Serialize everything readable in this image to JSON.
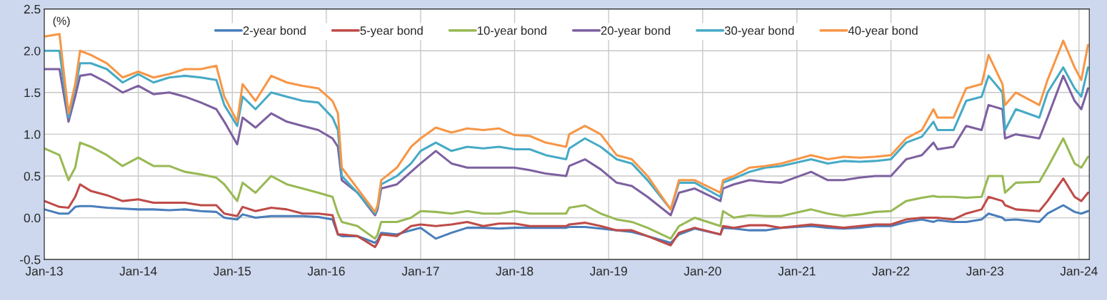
{
  "chart_data": {
    "type": "line",
    "ylabel": "(%)",
    "x": [
      "2013-01-02",
      "2013-03-01",
      "2013-04-05",
      "2013-05-01",
      "2013-05-20",
      "2013-07-01",
      "2013-09-01",
      "2013-11-01",
      "2014-01-01",
      "2014-03-01",
      "2014-05-01",
      "2014-07-01",
      "2014-09-01",
      "2014-10-31",
      "2014-12-01",
      "2015-01-20",
      "2015-02-10",
      "2015-04-01",
      "2015-06-01",
      "2015-08-01",
      "2015-10-01",
      "2015-12-01",
      "2016-01-25",
      "2016-02-15",
      "2016-03-01",
      "2016-05-01",
      "2016-07-08",
      "2016-07-18",
      "2016-08-01",
      "2016-10-01",
      "2016-11-25",
      "2017-01-01",
      "2017-03-01",
      "2017-05-01",
      "2017-07-01",
      "2017-09-01",
      "2017-11-01",
      "2018-01-01",
      "2018-03-01",
      "2018-05-01",
      "2018-07-20",
      "2018-08-01",
      "2018-10-01",
      "2018-12-01",
      "2019-02-01",
      "2019-04-01",
      "2019-06-01",
      "2019-08-30",
      "2019-10-01",
      "2019-12-01",
      "2020-03-10",
      "2020-03-20",
      "2020-05-01",
      "2020-07-01",
      "2020-09-01",
      "2020-11-01",
      "2021-02-25",
      "2021-05-01",
      "2021-07-01",
      "2021-09-01",
      "2021-11-01",
      "2022-01-01",
      "2022-03-01",
      "2022-05-01",
      "2022-06-15",
      "2022-07-01",
      "2022-09-01",
      "2022-10-20",
      "2022-12-19",
      "2023-01-15",
      "2023-03-10",
      "2023-03-20",
      "2023-05-01",
      "2023-07-31",
      "2023-09-01",
      "2023-11-01",
      "2023-12-15",
      "2024-01-10",
      "2024-02-05"
    ],
    "series": [
      {
        "name": "2-year bond",
        "color": "#4a7ebb",
        "values": [
          0.1,
          0.05,
          0.05,
          0.13,
          0.14,
          0.14,
          0.12,
          0.11,
          0.1,
          0.1,
          0.09,
          0.1,
          0.08,
          0.07,
          0.0,
          -0.02,
          0.04,
          0.0,
          0.02,
          0.02,
          0.02,
          0.01,
          -0.02,
          -0.2,
          -0.22,
          -0.22,
          -0.3,
          -0.27,
          -0.18,
          -0.2,
          -0.15,
          -0.12,
          -0.25,
          -0.18,
          -0.12,
          -0.12,
          -0.13,
          -0.12,
          -0.12,
          -0.12,
          -0.12,
          -0.11,
          -0.11,
          -0.13,
          -0.15,
          -0.17,
          -0.22,
          -0.3,
          -0.2,
          -0.13,
          -0.2,
          -0.12,
          -0.13,
          -0.15,
          -0.15,
          -0.12,
          -0.1,
          -0.12,
          -0.13,
          -0.12,
          -0.1,
          -0.1,
          -0.05,
          -0.02,
          -0.05,
          -0.03,
          -0.05,
          -0.05,
          -0.02,
          0.05,
          0.0,
          -0.03,
          -0.02,
          -0.05,
          0.05,
          0.15,
          0.07,
          0.05,
          0.08
        ]
      },
      {
        "name": "5-year bond",
        "color": "#be4b48",
        "values": [
          0.2,
          0.13,
          0.12,
          0.25,
          0.4,
          0.32,
          0.27,
          0.2,
          0.22,
          0.18,
          0.18,
          0.18,
          0.15,
          0.15,
          0.05,
          0.02,
          0.13,
          0.08,
          0.12,
          0.1,
          0.05,
          0.05,
          0.03,
          -0.2,
          -0.2,
          -0.22,
          -0.35,
          -0.3,
          -0.2,
          -0.22,
          -0.1,
          -0.08,
          -0.1,
          -0.08,
          -0.05,
          -0.1,
          -0.07,
          -0.07,
          -0.1,
          -0.1,
          -0.1,
          -0.08,
          -0.06,
          -0.1,
          -0.15,
          -0.15,
          -0.22,
          -0.33,
          -0.18,
          -0.12,
          -0.2,
          -0.1,
          -0.12,
          -0.09,
          -0.09,
          -0.12,
          -0.08,
          -0.1,
          -0.12,
          -0.1,
          -0.08,
          -0.08,
          -0.02,
          0.0,
          0.0,
          0.0,
          -0.02,
          0.05,
          0.1,
          0.25,
          0.2,
          0.15,
          0.1,
          0.08,
          0.2,
          0.47,
          0.25,
          0.2,
          0.3
        ]
      },
      {
        "name": "10-year bond",
        "color": "#98b954",
        "values": [
          0.83,
          0.75,
          0.45,
          0.6,
          0.9,
          0.85,
          0.75,
          0.62,
          0.72,
          0.62,
          0.62,
          0.55,
          0.52,
          0.48,
          0.4,
          0.2,
          0.42,
          0.3,
          0.5,
          0.4,
          0.35,
          0.3,
          0.25,
          0.05,
          -0.05,
          -0.1,
          -0.25,
          -0.2,
          -0.05,
          -0.05,
          0.0,
          0.08,
          0.07,
          0.05,
          0.08,
          0.05,
          0.05,
          0.08,
          0.05,
          0.05,
          0.05,
          0.12,
          0.15,
          0.05,
          -0.02,
          -0.05,
          -0.12,
          -0.25,
          -0.1,
          0.0,
          -0.1,
          0.08,
          0.0,
          0.03,
          0.02,
          0.02,
          0.1,
          0.05,
          0.02,
          0.04,
          0.07,
          0.08,
          0.2,
          0.24,
          0.26,
          0.25,
          0.25,
          0.24,
          0.25,
          0.5,
          0.5,
          0.3,
          0.42,
          0.43,
          0.6,
          0.95,
          0.65,
          0.6,
          0.73
        ]
      },
      {
        "name": "20-year bond",
        "color": "#7d60a0",
        "values": [
          1.78,
          1.78,
          1.15,
          1.45,
          1.7,
          1.72,
          1.62,
          1.5,
          1.58,
          1.48,
          1.5,
          1.45,
          1.38,
          1.3,
          1.15,
          0.88,
          1.2,
          1.08,
          1.25,
          1.15,
          1.1,
          1.05,
          0.95,
          0.85,
          0.45,
          0.3,
          0.03,
          0.1,
          0.35,
          0.4,
          0.55,
          0.65,
          0.8,
          0.65,
          0.6,
          0.6,
          0.6,
          0.6,
          0.57,
          0.53,
          0.5,
          0.62,
          0.7,
          0.58,
          0.42,
          0.38,
          0.25,
          0.03,
          0.3,
          0.35,
          0.2,
          0.35,
          0.4,
          0.45,
          0.43,
          0.42,
          0.55,
          0.45,
          0.45,
          0.48,
          0.5,
          0.5,
          0.7,
          0.75,
          0.9,
          0.82,
          0.85,
          1.1,
          1.05,
          1.35,
          1.3,
          0.95,
          1.0,
          0.95,
          1.2,
          1.7,
          1.4,
          1.3,
          1.55
        ]
      },
      {
        "name": "30-year bond",
        "color": "#46aac5",
        "values": [
          2.0,
          2.0,
          1.2,
          1.55,
          1.85,
          1.85,
          1.78,
          1.62,
          1.72,
          1.62,
          1.68,
          1.7,
          1.68,
          1.65,
          1.35,
          1.1,
          1.45,
          1.3,
          1.5,
          1.45,
          1.4,
          1.38,
          1.2,
          1.05,
          0.5,
          0.3,
          0.05,
          0.12,
          0.4,
          0.5,
          0.65,
          0.8,
          0.9,
          0.8,
          0.85,
          0.83,
          0.85,
          0.82,
          0.82,
          0.75,
          0.7,
          0.83,
          0.95,
          0.85,
          0.7,
          0.65,
          0.45,
          0.1,
          0.42,
          0.42,
          0.25,
          0.42,
          0.47,
          0.55,
          0.6,
          0.62,
          0.7,
          0.65,
          0.68,
          0.67,
          0.68,
          0.7,
          0.9,
          0.97,
          1.15,
          1.05,
          1.05,
          1.4,
          1.45,
          1.7,
          1.5,
          1.05,
          1.3,
          1.2,
          1.5,
          1.8,
          1.55,
          1.45,
          1.8
        ]
      },
      {
        "name": "40-year bond",
        "color": "#f79646",
        "values": [
          2.17,
          2.2,
          1.25,
          1.6,
          2.0,
          1.95,
          1.85,
          1.68,
          1.75,
          1.68,
          1.72,
          1.78,
          1.78,
          1.82,
          1.45,
          1.15,
          1.6,
          1.4,
          1.7,
          1.62,
          1.58,
          1.55,
          1.4,
          1.25,
          0.6,
          0.35,
          0.07,
          0.15,
          0.45,
          0.6,
          0.85,
          0.95,
          1.08,
          1.02,
          1.07,
          1.05,
          1.07,
          0.99,
          0.98,
          0.9,
          0.85,
          1.0,
          1.1,
          1.0,
          0.75,
          0.7,
          0.5,
          0.1,
          0.45,
          0.45,
          0.3,
          0.45,
          0.5,
          0.6,
          0.62,
          0.65,
          0.75,
          0.7,
          0.73,
          0.72,
          0.73,
          0.75,
          0.95,
          1.05,
          1.3,
          1.2,
          1.2,
          1.55,
          1.6,
          1.95,
          1.6,
          1.35,
          1.5,
          1.35,
          1.65,
          2.12,
          1.8,
          1.65,
          2.07
        ]
      }
    ],
    "xlim": [
      "2013-01-01",
      "2024-02-10"
    ],
    "xticks": [
      {
        "value": "2013-01-01",
        "label": "Jan-13"
      },
      {
        "value": "2014-01-01",
        "label": "Jan-14"
      },
      {
        "value": "2015-01-01",
        "label": "Jan-15"
      },
      {
        "value": "2016-01-01",
        "label": "Jan-16"
      },
      {
        "value": "2017-01-01",
        "label": "Jan-17"
      },
      {
        "value": "2018-01-01",
        "label": "Jan-18"
      },
      {
        "value": "2019-01-01",
        "label": "Jan-19"
      },
      {
        "value": "2020-01-01",
        "label": "Jan-20"
      },
      {
        "value": "2021-01-01",
        "label": "Jan-21"
      },
      {
        "value": "2022-01-01",
        "label": "Jan-22"
      },
      {
        "value": "2023-01-01",
        "label": "Jan-23"
      },
      {
        "value": "2024-01-01",
        "label": "Jan-24"
      }
    ],
    "ylim": [
      -0.5,
      2.5
    ],
    "yticks": [
      {
        "value": -0.5,
        "label": "-0.5"
      },
      {
        "value": 0,
        "label": "0.0"
      },
      {
        "value": 0.5,
        "label": "0.5"
      },
      {
        "value": 1,
        "label": "1.0"
      },
      {
        "value": 1.5,
        "label": "1.5"
      },
      {
        "value": 2,
        "label": "2.0"
      },
      {
        "value": 2.5,
        "label": "2.5"
      }
    ],
    "grid": true,
    "legend": "top",
    "marker": "none",
    "line_style": "solid"
  }
}
